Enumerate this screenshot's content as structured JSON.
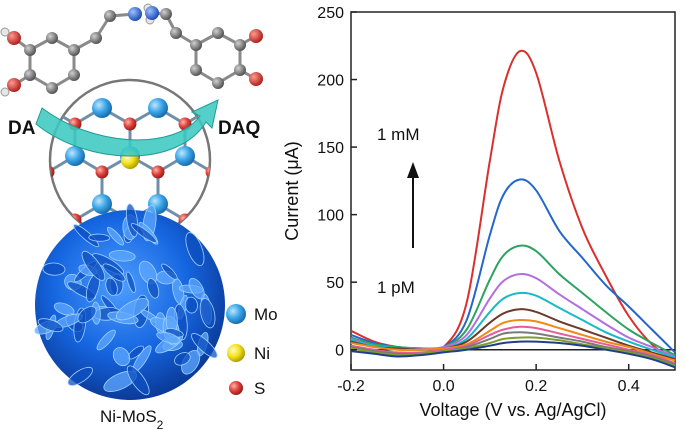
{
  "illustration": {
    "reactant_label": "DA",
    "product_label": "DAQ",
    "catalyst_label": "Ni-MoS",
    "catalyst_subscript": "2",
    "legend": [
      {
        "label": "Mo",
        "color": "#3aa6e8"
      },
      {
        "label": "Ni",
        "color": "#f2e21b"
      },
      {
        "label": "S",
        "color": "#e0413a"
      }
    ],
    "colors": {
      "cluster": "#1565e0",
      "arrow": "#3cc9c0"
    }
  },
  "chart_data": {
    "type": "line",
    "xlabel": "Voltage (V vs. Ag/AgCl)",
    "ylabel": "Current (μA)",
    "xlim": [
      -0.2,
      0.5
    ],
    "ylim": [
      -15,
      250
    ],
    "xticks": [
      "-0.2",
      "0.0",
      "0.2",
      "0.4"
    ],
    "xtick_values": [
      -0.2,
      0.0,
      0.2,
      0.4
    ],
    "yticks": [
      "0",
      "50",
      "100",
      "150",
      "200",
      "250"
    ],
    "ytick_values": [
      0,
      50,
      100,
      150,
      200,
      250
    ],
    "annotation_high": "1 mM",
    "annotation_low": "1 pM",
    "series": [
      {
        "color": "#d9302c",
        "peak": 221,
        "x": [
          -0.2,
          -0.15,
          -0.1,
          -0.05,
          0.0,
          0.05,
          0.1,
          0.13,
          0.165,
          0.2,
          0.25,
          0.3,
          0.35,
          0.4,
          0.45,
          0.5
        ],
        "values": [
          14,
          6,
          2,
          1,
          2,
          35,
          140,
          195,
          221,
          205,
          140,
          90,
          55,
          25,
          4,
          -8
        ]
      },
      {
        "color": "#2267c9",
        "peak": 126,
        "x": [
          -0.2,
          -0.15,
          -0.1,
          -0.05,
          0.0,
          0.05,
          0.1,
          0.13,
          0.165,
          0.2,
          0.25,
          0.3,
          0.35,
          0.4,
          0.45,
          0.5
        ],
        "values": [
          11,
          5,
          2,
          1,
          2,
          22,
          85,
          115,
          126,
          118,
          88,
          68,
          48,
          32,
          15,
          -2
        ]
      },
      {
        "color": "#2ca360",
        "peak": 77,
        "x": [
          -0.2,
          -0.15,
          -0.1,
          -0.05,
          0.0,
          0.05,
          0.1,
          0.13,
          0.165,
          0.2,
          0.25,
          0.3,
          0.35,
          0.4,
          0.45,
          0.5
        ],
        "values": [
          9,
          4,
          2,
          1,
          2,
          15,
          52,
          70,
          77,
          73,
          56,
          42,
          28,
          15,
          5,
          -4
        ]
      },
      {
        "color": "#b36ee0",
        "peak": 56,
        "x": [
          -0.2,
          -0.15,
          -0.1,
          -0.05,
          0.0,
          0.05,
          0.1,
          0.13,
          0.165,
          0.2,
          0.25,
          0.3,
          0.35,
          0.4,
          0.45,
          0.5
        ],
        "values": [
          8,
          3,
          1,
          1,
          2,
          11,
          38,
          51,
          56,
          53,
          41,
          30,
          19,
          9,
          2,
          -5
        ]
      },
      {
        "color": "#19b9c7",
        "peak": 42,
        "x": [
          -0.2,
          -0.15,
          -0.1,
          -0.05,
          0.0,
          0.05,
          0.1,
          0.13,
          0.165,
          0.2,
          0.25,
          0.3,
          0.35,
          0.4,
          0.45,
          0.5
        ],
        "values": [
          7,
          3,
          1,
          0,
          1,
          8,
          28,
          38,
          42,
          40,
          31,
          22,
          13,
          6,
          0,
          -6
        ]
      },
      {
        "color": "#6b3b2a",
        "peak": 30,
        "x": [
          -0.2,
          -0.15,
          -0.1,
          -0.05,
          0.0,
          0.05,
          0.1,
          0.13,
          0.165,
          0.2,
          0.25,
          0.3,
          0.35,
          0.4,
          0.45,
          0.5
        ],
        "values": [
          6,
          2,
          1,
          0,
          1,
          6,
          20,
          27,
          30,
          28,
          21,
          15,
          9,
          3,
          -2,
          -7
        ]
      },
      {
        "color": "#ef8a16",
        "peak": 22,
        "x": [
          -0.2,
          -0.15,
          -0.1,
          -0.05,
          0.0,
          0.05,
          0.1,
          0.13,
          0.165,
          0.2,
          0.25,
          0.3,
          0.35,
          0.4,
          0.45,
          0.5
        ],
        "values": [
          5,
          2,
          0,
          0,
          1,
          4,
          14,
          20,
          22,
          21,
          16,
          11,
          6,
          2,
          -3,
          -8
        ]
      },
      {
        "color": "#e85b9a",
        "peak": 17,
        "x": [
          -0.2,
          -0.15,
          -0.1,
          -0.05,
          0.0,
          0.05,
          0.1,
          0.13,
          0.165,
          0.2,
          0.25,
          0.3,
          0.35,
          0.4,
          0.45,
          0.5
        ],
        "values": [
          3,
          0,
          -2,
          -2,
          0,
          3,
          11,
          15,
          17,
          16,
          12,
          8,
          4,
          0,
          -4,
          -10
        ]
      },
      {
        "color": "#7a7a7a",
        "peak": 13,
        "x": [
          -0.2,
          -0.15,
          -0.1,
          -0.05,
          0.0,
          0.05,
          0.1,
          0.13,
          0.165,
          0.2,
          0.25,
          0.3,
          0.35,
          0.4,
          0.45,
          0.5
        ],
        "values": [
          2,
          -1,
          -3,
          -3,
          -1,
          2,
          8,
          12,
          13,
          12,
          9,
          6,
          2,
          -1,
          -5,
          -11
        ]
      },
      {
        "color": "#7f9d2a",
        "peak": 9,
        "x": [
          -0.2,
          -0.15,
          -0.1,
          -0.05,
          0.0,
          0.05,
          0.1,
          0.13,
          0.165,
          0.2,
          0.25,
          0.3,
          0.35,
          0.4,
          0.45,
          0.5
        ],
        "values": [
          1,
          -2,
          -4,
          -3,
          -1,
          1,
          5,
          8,
          9,
          9,
          7,
          4,
          1,
          -2,
          -6,
          -12
        ]
      },
      {
        "color": "#1f3f8a",
        "peak": 6,
        "x": [
          -0.2,
          -0.15,
          -0.1,
          -0.05,
          0.0,
          0.05,
          0.1,
          0.13,
          0.165,
          0.2,
          0.25,
          0.3,
          0.35,
          0.4,
          0.45,
          0.5
        ],
        "values": [
          -1,
          -3,
          -5,
          -4,
          -2,
          0,
          3,
          5,
          6,
          6,
          5,
          3,
          0,
          -3,
          -7,
          -13
        ]
      }
    ]
  }
}
